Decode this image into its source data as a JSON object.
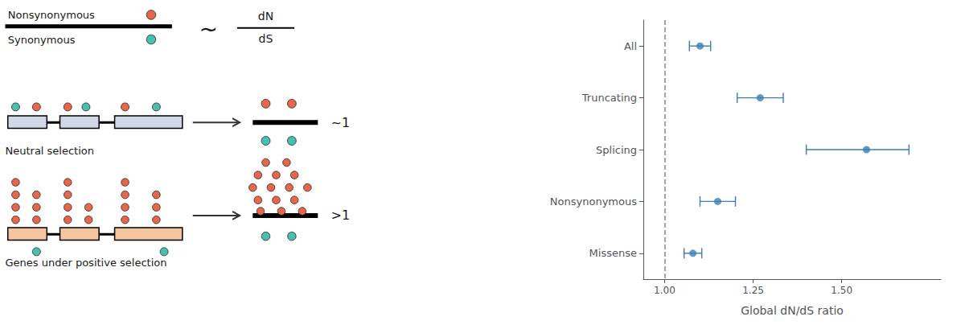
{
  "chart_data": {
    "type": "scatter",
    "categories": [
      "All",
      "Truncating",
      "Splicing",
      "Nonsynonymous",
      "Missense"
    ],
    "values": [
      1.1,
      1.27,
      1.57,
      1.15,
      1.08
    ],
    "error_low": [
      0.03,
      0.065,
      0.17,
      0.05,
      0.025
    ],
    "error_high": [
      0.03,
      0.065,
      0.12,
      0.05,
      0.025
    ],
    "color": "#3A7DB5",
    "xlabel": "Global dN/dS ratio",
    "xlim": [
      0.94,
      1.78
    ],
    "xticks": [
      {
        "value": 1.0,
        "label": "1.00"
      },
      {
        "value": 1.25,
        "label": "1.25"
      },
      {
        "value": 1.5,
        "label": "1.50"
      }
    ],
    "reference_line": {
      "x": 1.0,
      "color": "#888888"
    },
    "grid": false,
    "annotations": [
      {
        "text": "Nonsynonymous",
        "color": "#E8674A"
      },
      {
        "text": "Synonymous",
        "color": "#4ABFB0"
      },
      {
        "text": "~"
      },
      {
        "text": "dN"
      },
      {
        "text": "dS"
      },
      {
        "text": "~1"
      },
      {
        "text": ">1"
      },
      {
        "text": "Neutral selection",
        "color": "#D0D8E8"
      },
      {
        "text": "Genes under positive selection",
        "color": "#F5C5A0"
      }
    ]
  }
}
